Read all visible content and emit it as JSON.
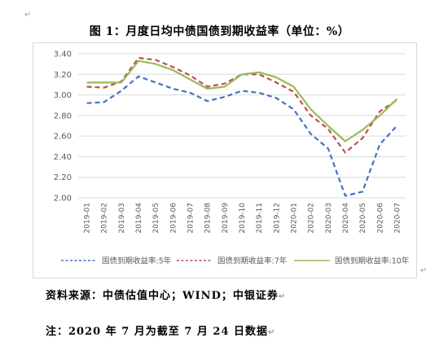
{
  "document": {
    "title": "图 1：月度日均中债国债到期收益率（单位：%）",
    "source": "资料来源：中债估值中心；WIND；中银证券",
    "note": "注：2020 年 7 月为截至 7 月 24 日数据",
    "paragraph_mark": "↵"
  },
  "chart_data": {
    "type": "line",
    "title": "",
    "xlabel": "",
    "ylabel": "",
    "ylim": [
      2.0,
      3.4
    ],
    "yticks": [
      "2.00",
      "2.20",
      "2.40",
      "2.60",
      "2.80",
      "3.00",
      "3.20",
      "3.40"
    ],
    "grid": true,
    "legend": "bottom",
    "categories": [
      "2019-01",
      "2019-02",
      "2019-03",
      "2019-04",
      "2019-05",
      "2019-06",
      "2019-07",
      "2019-08",
      "2019-09",
      "2019-10",
      "2019-11",
      "2019-12",
      "2020-01",
      "2020-02",
      "2020-03",
      "2020-04",
      "2020-05",
      "2020-06",
      "2020-07"
    ],
    "series": [
      {
        "name": "国债到期收益率:5年",
        "color": "#4472c4",
        "style": "dashed",
        "values": [
          2.92,
          2.93,
          3.04,
          3.18,
          3.12,
          3.06,
          3.02,
          2.94,
          2.98,
          3.04,
          3.02,
          2.97,
          2.86,
          2.62,
          2.48,
          2.02,
          2.06,
          2.52,
          2.7
        ]
      },
      {
        "name": "国债到期收益率:7年",
        "color": "#c0504d",
        "style": "dashed",
        "values": [
          3.08,
          3.07,
          3.13,
          3.36,
          3.34,
          3.27,
          3.19,
          3.08,
          3.11,
          3.2,
          3.2,
          3.12,
          3.03,
          2.8,
          2.67,
          2.44,
          2.58,
          2.84,
          2.95
        ]
      },
      {
        "name": "国债到期收益率:10年",
        "color": "#9bbb59",
        "style": "solid",
        "values": [
          3.12,
          3.12,
          3.12,
          3.33,
          3.3,
          3.24,
          3.15,
          3.06,
          3.08,
          3.2,
          3.22,
          3.17,
          3.08,
          2.86,
          2.7,
          2.55,
          2.66,
          2.8,
          2.96
        ]
      }
    ]
  }
}
